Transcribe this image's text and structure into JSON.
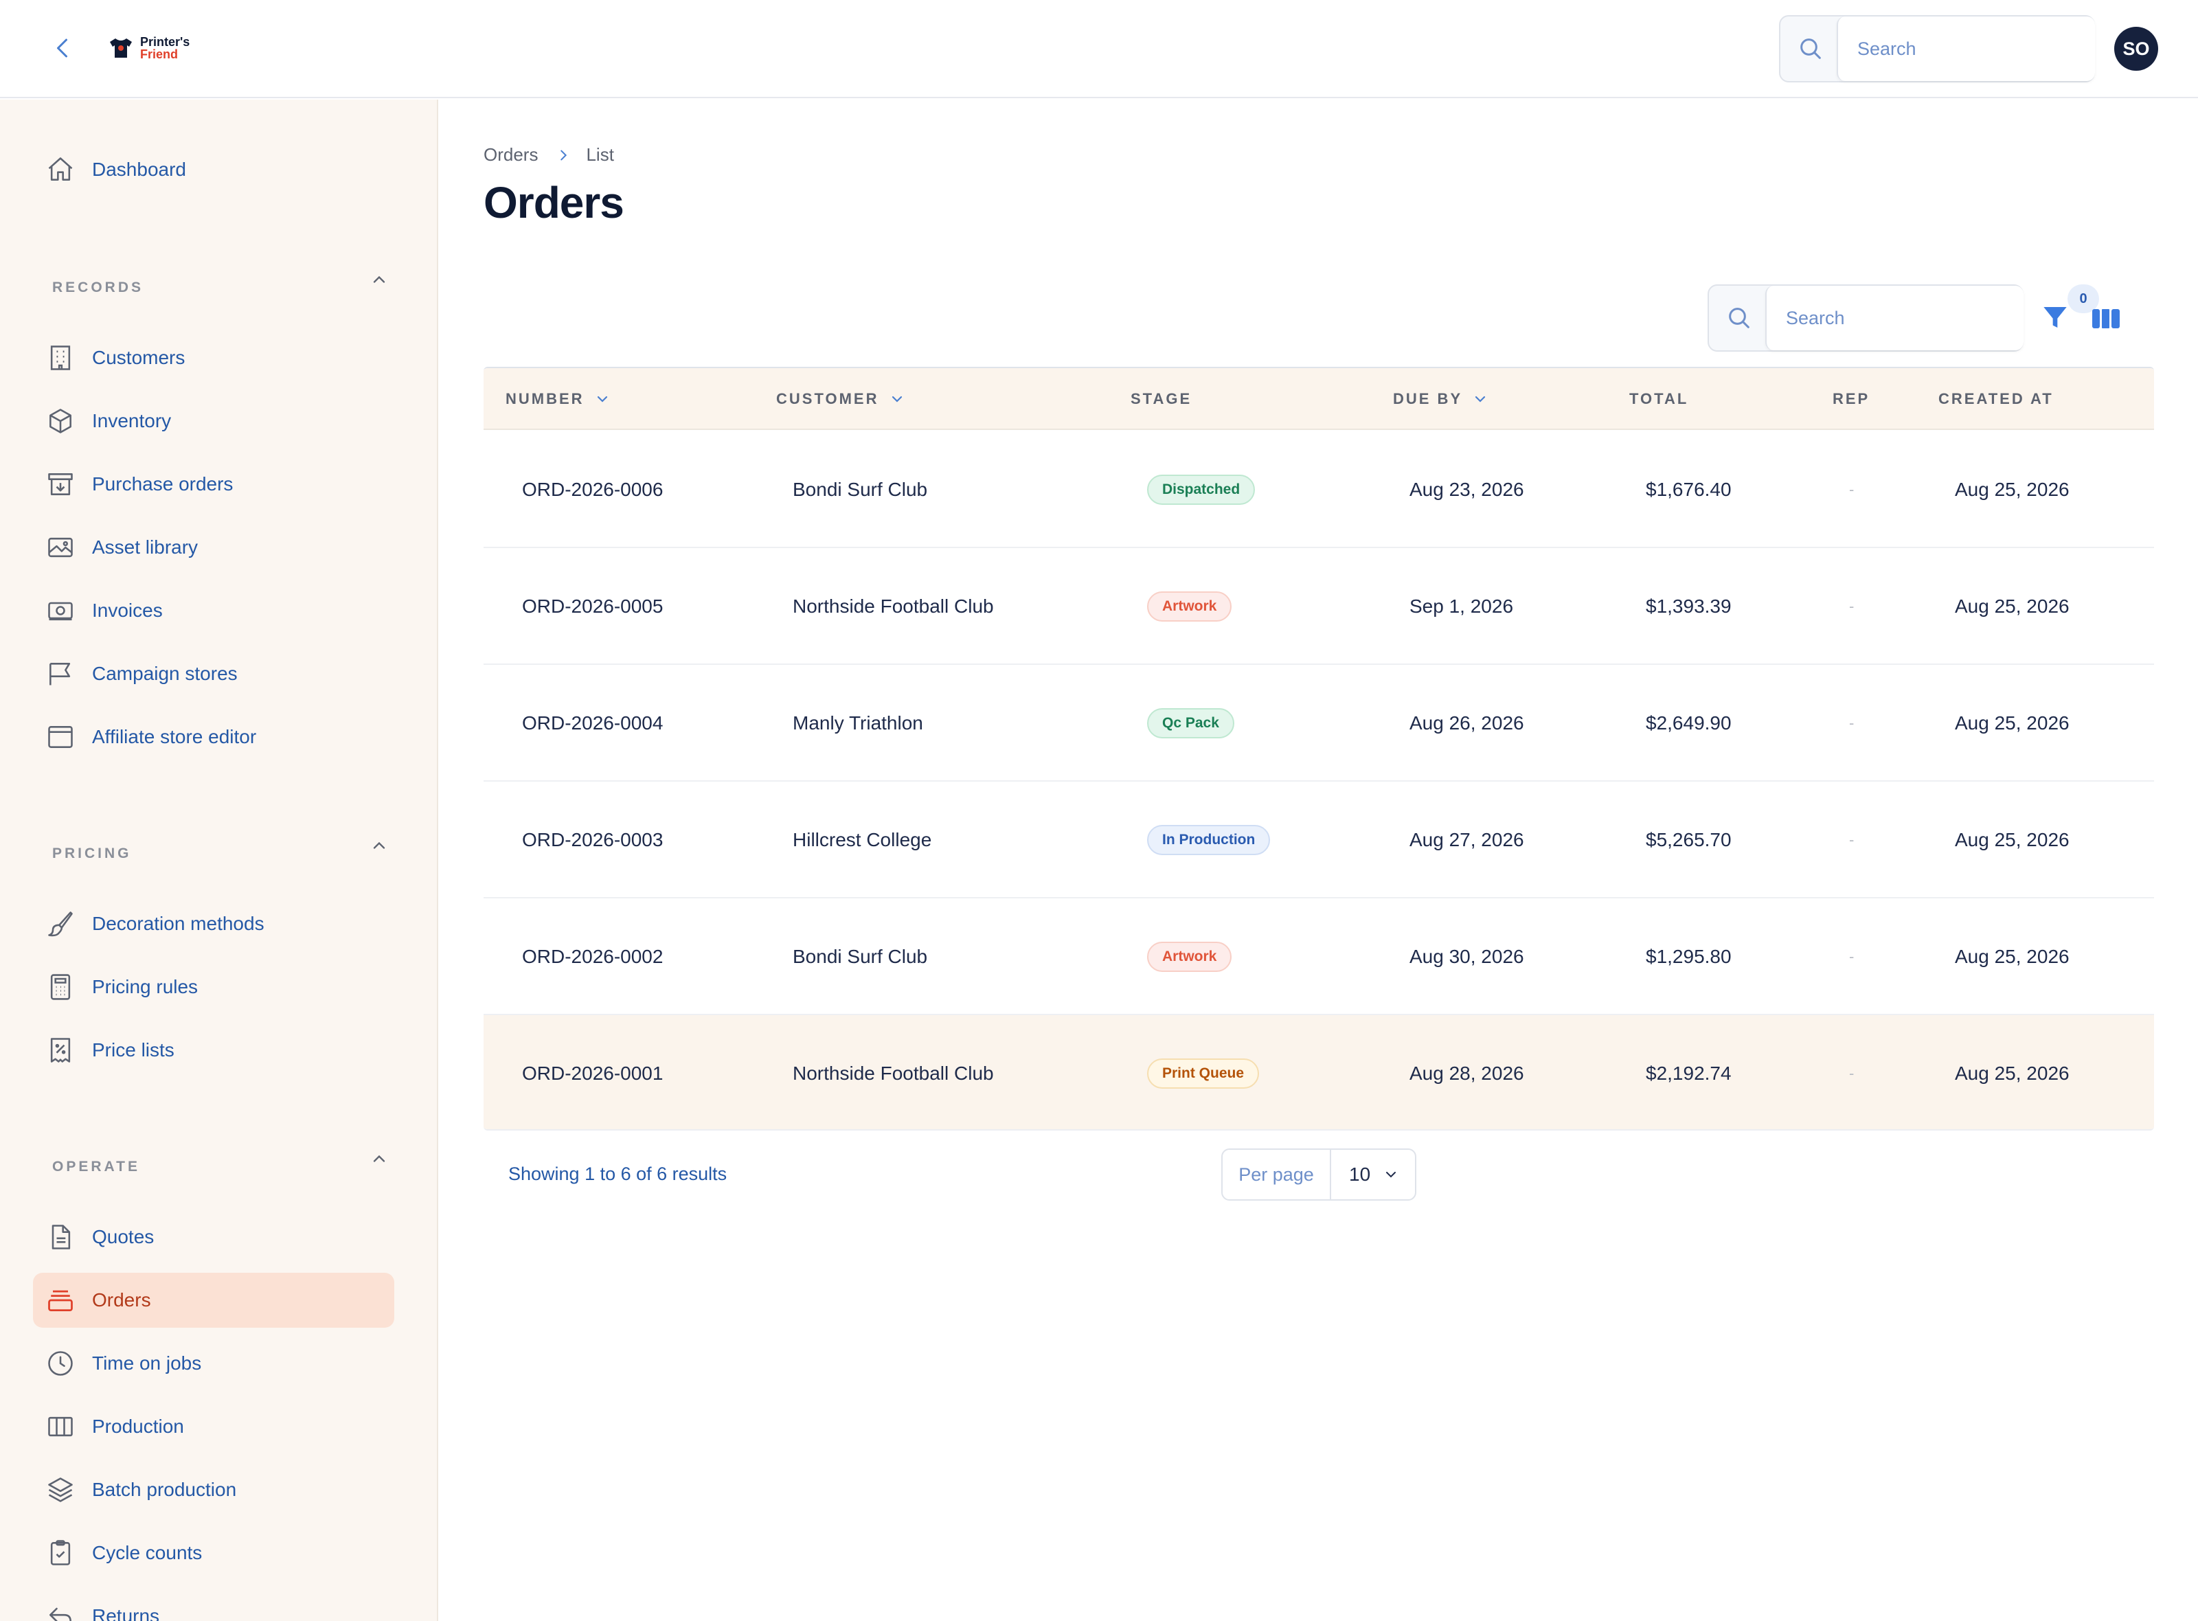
{
  "header": {
    "logo_line1": "Printer's",
    "logo_line2": "Friend",
    "search_placeholder": "Search",
    "avatar_initials": "SO"
  },
  "sidebar": {
    "top_items": [
      {
        "label": "Dashboard",
        "icon": "home-icon"
      }
    ],
    "sections": [
      {
        "label": "RECORDS",
        "items": [
          {
            "label": "Customers",
            "icon": "building-icon"
          },
          {
            "label": "Inventory",
            "icon": "box-icon"
          },
          {
            "label": "Purchase orders",
            "icon": "archive-download-icon"
          },
          {
            "label": "Asset library",
            "icon": "image-icon"
          },
          {
            "label": "Invoices",
            "icon": "banknote-icon"
          },
          {
            "label": "Campaign stores",
            "icon": "flag-icon"
          },
          {
            "label": "Affiliate store editor",
            "icon": "browser-window-icon"
          }
        ]
      },
      {
        "label": "PRICING",
        "items": [
          {
            "label": "Decoration methods",
            "icon": "paintbrush-icon"
          },
          {
            "label": "Pricing rules",
            "icon": "calculator-icon"
          },
          {
            "label": "Price lists",
            "icon": "receipt-percent-icon"
          }
        ]
      },
      {
        "label": "OPERATE",
        "items": [
          {
            "label": "Quotes",
            "icon": "document-icon"
          },
          {
            "label": "Orders",
            "icon": "tray-stack-icon",
            "active": true
          },
          {
            "label": "Time on jobs",
            "icon": "clock-icon"
          },
          {
            "label": "Production",
            "icon": "columns-icon"
          },
          {
            "label": "Batch production",
            "icon": "layers-icon"
          },
          {
            "label": "Cycle counts",
            "icon": "clipboard-check-icon"
          },
          {
            "label": "Returns",
            "icon": "return-arrow-icon"
          }
        ]
      }
    ]
  },
  "main": {
    "breadcrumb": [
      "Orders",
      "List"
    ],
    "title": "Orders",
    "search_placeholder": "Search",
    "filter_count": "0",
    "columns": {
      "number": "NUMBER",
      "customer": "CUSTOMER",
      "stage": "STAGE",
      "due_by": "DUE BY",
      "total": "TOTAL",
      "rep": "REP",
      "created_at": "CREATED AT"
    },
    "rows": [
      {
        "number": "ORD-2026-0006",
        "customer": "Bondi Surf Club",
        "stage": "Dispatched",
        "stage_color": "green",
        "due_by": "Aug 23, 2026",
        "total": "$1,676.40",
        "rep": "-",
        "created_at": "Aug 25, 2026"
      },
      {
        "number": "ORD-2026-0005",
        "customer": "Northside Football Club",
        "stage": "Artwork",
        "stage_color": "red",
        "due_by": "Sep 1, 2026",
        "total": "$1,393.39",
        "rep": "-",
        "created_at": "Aug 25, 2026"
      },
      {
        "number": "ORD-2026-0004",
        "customer": "Manly Triathlon",
        "stage": "Qc Pack",
        "stage_color": "green",
        "due_by": "Aug 26, 2026",
        "total": "$2,649.90",
        "rep": "-",
        "created_at": "Aug 25, 2026"
      },
      {
        "number": "ORD-2026-0003",
        "customer": "Hillcrest College",
        "stage": "In Production",
        "stage_color": "blue",
        "due_by": "Aug 27, 2026",
        "total": "$5,265.70",
        "rep": "-",
        "created_at": "Aug 25, 2026"
      },
      {
        "number": "ORD-2026-0002",
        "customer": "Bondi Surf Club",
        "stage": "Artwork",
        "stage_color": "red",
        "due_by": "Aug 30, 2026",
        "total": "$1,295.80",
        "rep": "-",
        "created_at": "Aug 25, 2026"
      },
      {
        "number": "ORD-2026-0001",
        "customer": "Northside Football Club",
        "stage": "Print Queue",
        "stage_color": "amber",
        "due_by": "Aug 28, 2026",
        "total": "$2,192.74",
        "rep": "-",
        "created_at": "Aug 25, 2026"
      }
    ],
    "results_text": "Showing 1 to 6 of 6 results",
    "per_page_label": "Per page",
    "per_page_value": "10"
  },
  "colors": {
    "accent": "#2458a6",
    "active_bg": "#fbe1d4",
    "active_text": "#b23a1a",
    "sidebar_bg": "#fbf6f1",
    "green": "#1a7f55",
    "red": "#e0553a",
    "blue": "#2a5bb0",
    "amber": "#b45309"
  }
}
